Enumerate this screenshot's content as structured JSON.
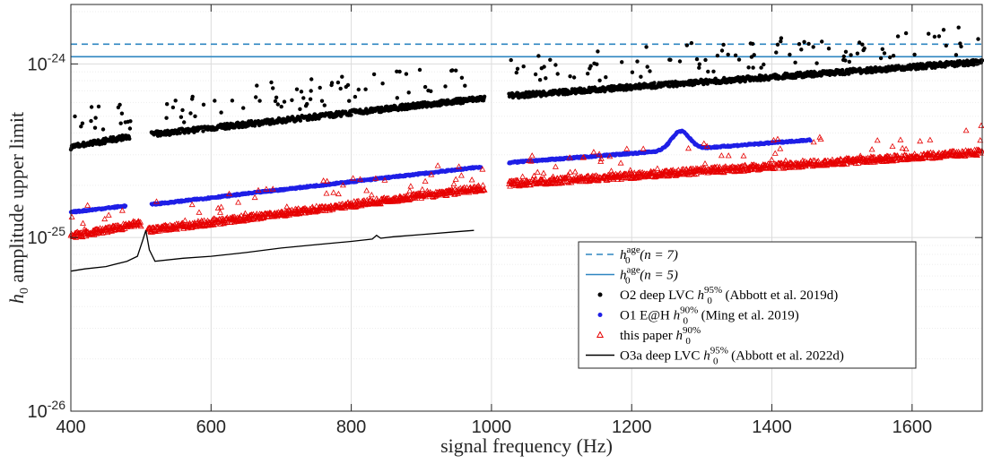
{
  "chart_data": {
    "type": "scatter",
    "xlabel": "signal frequency (Hz)",
    "ylabel": "h_0 amplitude upper limit",
    "xlim": [
      400,
      1700
    ],
    "ylim": [
      1e-26,
      2.2e-24
    ],
    "yscale": "log",
    "grid": true,
    "legend_position": "lower-right",
    "x_ticks": [
      400,
      600,
      800,
      1000,
      1200,
      1400,
      1600
    ],
    "x_tick_labels": [
      "400",
      "600",
      "800",
      "1000",
      "1200",
      "1400",
      "1600"
    ],
    "y_ticks": [
      1e-26,
      1e-25,
      1e-24
    ],
    "y_tick_labels": [
      {
        "base": "10",
        "exp": "-26"
      },
      {
        "base": "10",
        "exp": "-25"
      },
      {
        "base": "10",
        "exp": "-24"
      }
    ],
    "series": [
      {
        "name": "h0age (n = 7)",
        "kind": "hline",
        "style": "dashed",
        "color": "#2E86C1",
        "y": 1.3e-24
      },
      {
        "name": "h0age (n = 5)",
        "kind": "hline",
        "style": "solid",
        "color": "#2E86C1",
        "y": 1.1e-24
      },
      {
        "name": "O2 deep LVC h0 95% (Abbott et al. 2019d)",
        "kind": "dots",
        "color": "#000000",
        "segments": [
          {
            "x": [
              400,
              485
            ],
            "y": [
              3.3e-25,
              3.8e-25
            ]
          },
          {
            "x": [
              515,
              990
            ],
            "y": [
              3.9e-25,
              6.3e-25
            ]
          },
          {
            "x": [
              1025,
              1700
            ],
            "y": [
              6.5e-25,
              1.02e-24
            ]
          }
        ]
      },
      {
        "name": "O1 E@H h0 90% (Ming et al. 2019)",
        "kind": "dots",
        "color": "#1F1FE6",
        "segments": [
          {
            "x": [
              400,
              478
            ],
            "y": [
              1.4e-25,
              1.52e-25
            ]
          },
          {
            "x": [
              515,
              985
            ],
            "y": [
              1.55e-25,
              2.55e-25
            ]
          },
          {
            "x": [
              1025,
              1455
            ],
            "y": [
              2.7e-25,
              3.65e-25
            ]
          }
        ],
        "bump": {
          "x": 1270,
          "y": 4.1e-25
        }
      },
      {
        "name": "this paper h0 90%",
        "kind": "triangles",
        "color": "#E60000",
        "segments": [
          {
            "x": [
              400,
              500
            ],
            "y": [
              1e-25,
              1.18e-25
            ]
          },
          {
            "x": [
              510,
              990
            ],
            "y": [
              1.08e-25,
              1.9e-25
            ]
          },
          {
            "x": [
              1025,
              1700
            ],
            "y": [
              2e-25,
              3.05e-25
            ]
          }
        ]
      },
      {
        "name": "O3a deep LVC h0 95% (Abbott et al. 2022d)",
        "kind": "line",
        "color": "#000000",
        "points": [
          [
            400,
            6.4e-26
          ],
          [
            420,
            6.6e-26
          ],
          [
            450,
            6.8e-26
          ],
          [
            480,
            7.3e-26
          ],
          [
            495,
            7.8e-26
          ],
          [
            502,
            9.5e-26
          ],
          [
            507,
            1.1e-25
          ],
          [
            512,
            8.5e-26
          ],
          [
            520,
            7.3e-26
          ],
          [
            560,
            7.6e-26
          ],
          [
            600,
            7.8e-26
          ],
          [
            650,
            8.2e-26
          ],
          [
            700,
            8.7e-26
          ],
          [
            750,
            9.1e-26
          ],
          [
            800,
            9.5e-26
          ],
          [
            830,
            9.8e-26
          ],
          [
            836,
            1.03e-25
          ],
          [
            842,
            9.9e-26
          ],
          [
            860,
            1.01e-25
          ],
          [
            900,
            1.04e-25
          ],
          [
            950,
            1.08e-25
          ],
          [
            975,
            1.1e-25
          ]
        ]
      }
    ]
  },
  "legend": [
    {
      "pre": "h",
      "sub": "0",
      "sup": "age",
      "post": "(n = 7)"
    },
    {
      "pre": "h",
      "sub": "0",
      "sup": "age",
      "post": "(n = 5)"
    },
    {
      "pre": "O2 deep LVC h",
      "sub": "0",
      "sup": "95%",
      "post": " (Abbott et al. 2019d)"
    },
    {
      "pre": "O1 E@H h",
      "sub": "0",
      "sup": "90%",
      "post": " (Ming et al. 2019)"
    },
    {
      "pre": "this paper h",
      "sub": "0",
      "sup": "90%",
      "post": ""
    },
    {
      "pre": "O3a deep LVC h",
      "sub": "0",
      "sup": "95%",
      "post": " (Abbott et al. 2022d)"
    }
  ]
}
